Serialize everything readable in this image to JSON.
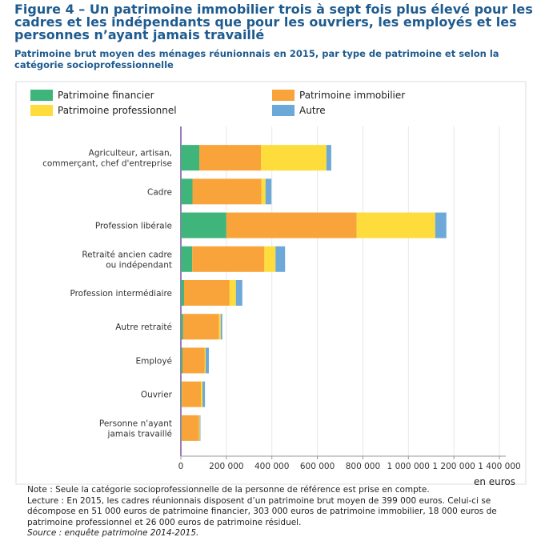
{
  "chart_data": {
    "type": "stacked-barh",
    "title": "Figure 4 – Un patrimoine immobilier trois à sept fois plus élevé pour les cadres et les indépendants que pour les ouvriers, les employés et les personnes n’ayant jamais travaillé",
    "subtitle": "Patrimoine brut moyen des ménages réunionnais en 2015, par type de patrimoine et selon la catégorie socioprofessionnelle",
    "x_label": "en euros",
    "categories": [
      "Agriculteur, artisan,\ncommerçant, chef d'entreprise",
      "Cadre",
      "Profession libérale",
      "Retraité ancien cadre\nou indépendant",
      "Profession intermédiaire",
      "Autre retraité",
      "Employé",
      "Ouvrier",
      "Personne n'ayant\njamais travaillé"
    ],
    "series": [
      {
        "name": "Patrimoine financier",
        "color": "#3fb57c",
        "values": [
          81000,
          51000,
          200000,
          50000,
          14000,
          10000,
          7000,
          4000,
          3000
        ]
      },
      {
        "name": "Patrimoine immobilier",
        "color": "#f9a43b",
        "values": [
          271000,
          303000,
          573000,
          317000,
          200000,
          158000,
          98000,
          84000,
          77000
        ]
      },
      {
        "name": "Patrimoine professionnel",
        "color": "#fddc3c",
        "values": [
          288000,
          18000,
          345000,
          49000,
          28000,
          7000,
          4000,
          7000,
          3000
        ]
      },
      {
        "name": "Autre",
        "color": "#6ca9d9",
        "values": [
          21000,
          26000,
          49000,
          42000,
          28000,
          7000,
          14000,
          11000,
          3000
        ]
      }
    ],
    "xlim": [
      0,
      1400000
    ],
    "xticks": [
      0,
      {
        "value": 200000,
        "label": "200 000"
      },
      {
        "value": 400000,
        "label": "400 000"
      },
      {
        "value": 600000,
        "label": "600 000"
      },
      {
        "value": 800000,
        "label": "800 000"
      },
      {
        "value": 1000000,
        "label": "1 000 000"
      },
      {
        "value": 1200000,
        "label": "1 200 000"
      },
      {
        "value": 1400000,
        "label": "1 400 000"
      }
    ],
    "grid": true,
    "notes": [
      "Note : Seule la catégorie socioprofessionnelle de la personne de référence est prise en compte.",
      "Lecture : En 2015, les cadres réunionnais disposent d’un patrimoine brut moyen de 399 000 euros. Celui-ci se décompose en 51 000 euros de patrimoine financier, 303 000 euros de patrimoine immobilier, 18 000 euros de patrimoine professionnel et 26 000 euros de patrimoine résiduel."
    ],
    "source": "Source : enquête patrimoine 2014-2015."
  }
}
